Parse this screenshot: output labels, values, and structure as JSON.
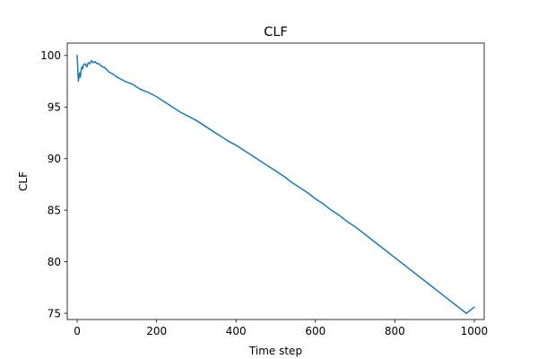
{
  "chart_data": {
    "type": "line",
    "title": "CLF",
    "xlabel": "Time step",
    "ylabel": "CLF",
    "xlim": [
      -25,
      1025
    ],
    "ylim": [
      74.4,
      101.2
    ],
    "xticks": [
      0,
      200,
      400,
      600,
      800,
      1000
    ],
    "yticks": [
      75,
      80,
      85,
      90,
      95,
      100
    ],
    "grid": false,
    "series": [
      {
        "color": "#1f77b4",
        "x": [
          0,
          3,
          6,
          8,
          10,
          12,
          14,
          16,
          20,
          24,
          28,
          32,
          36,
          40,
          45,
          50,
          55,
          60,
          70,
          80,
          90,
          100,
          120,
          140,
          160,
          180,
          200,
          220,
          240,
          260,
          280,
          300,
          320,
          340,
          360,
          380,
          400,
          420,
          440,
          460,
          480,
          500,
          520,
          540,
          560,
          580,
          600,
          620,
          640,
          660,
          680,
          700,
          720,
          740,
          760,
          780,
          800,
          820,
          840,
          860,
          880,
          900,
          920,
          940,
          960,
          980,
          1000
        ],
        "values": [
          100.0,
          97.5,
          98.3,
          97.9,
          98.6,
          98.9,
          98.7,
          99.1,
          99.2,
          98.9,
          99.3,
          99.2,
          99.5,
          99.3,
          99.4,
          99.2,
          99.2,
          99.0,
          98.8,
          98.4,
          98.2,
          97.9,
          97.5,
          97.2,
          96.7,
          96.4,
          96.0,
          95.5,
          95.0,
          94.5,
          94.1,
          93.7,
          93.2,
          92.7,
          92.2,
          91.7,
          91.3,
          90.8,
          90.3,
          89.8,
          89.3,
          88.8,
          88.3,
          87.7,
          87.2,
          86.7,
          86.1,
          85.6,
          85.0,
          84.5,
          83.9,
          83.4,
          82.8,
          82.2,
          81.6,
          81.0,
          80.4,
          79.8,
          79.2,
          78.6,
          78.0,
          77.4,
          76.8,
          76.2,
          75.6,
          75.0,
          75.6
        ]
      }
    ]
  }
}
